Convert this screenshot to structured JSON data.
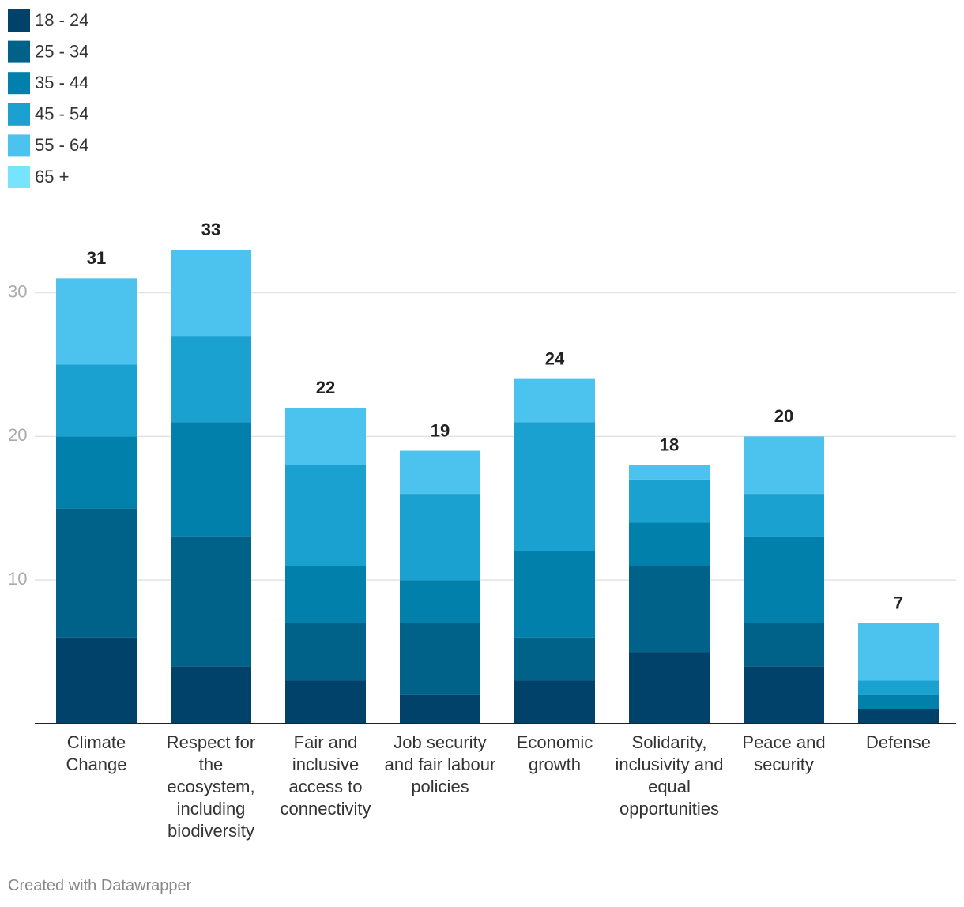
{
  "chart_data": {
    "type": "stacked_bar",
    "categories": [
      "Climate Change",
      "Respect for the ecosystem, including biodiversity",
      "Fair and inclusive access to connectivity",
      "Job security and fair labour policies",
      "Economic growth",
      "Solidarity, inclusivity and equal opportunities",
      "Peace and security",
      "Defense"
    ],
    "series": [
      {
        "name": "18 - 24",
        "color": "#00426a",
        "values": [
          6,
          4,
          3,
          2,
          3,
          5,
          4,
          1
        ]
      },
      {
        "name": "25 - 34",
        "color": "#006189",
        "values": [
          9,
          9,
          4,
          5,
          3,
          6,
          3,
          0
        ]
      },
      {
        "name": "35 - 44",
        "color": "#0080ab",
        "values": [
          5,
          8,
          4,
          3,
          6,
          3,
          6,
          1
        ]
      },
      {
        "name": "45 - 54",
        "color": "#1aa1d0",
        "values": [
          5,
          6,
          7,
          6,
          9,
          3,
          3,
          1
        ]
      },
      {
        "name": "55 - 64",
        "color": "#4cc2ee",
        "values": [
          6,
          6,
          4,
          3,
          3,
          1,
          4,
          4
        ]
      },
      {
        "name": "65 +",
        "color": "#77e4fe",
        "values": [
          0,
          0,
          0,
          0,
          0,
          0,
          0,
          0
        ]
      }
    ],
    "totals": [
      31,
      33,
      22,
      19,
      24,
      18,
      20,
      7
    ],
    "ylim": [
      0,
      33
    ],
    "yticks": [
      10,
      20,
      30
    ],
    "grid": true,
    "footer": "Created with Datawrapper"
  }
}
